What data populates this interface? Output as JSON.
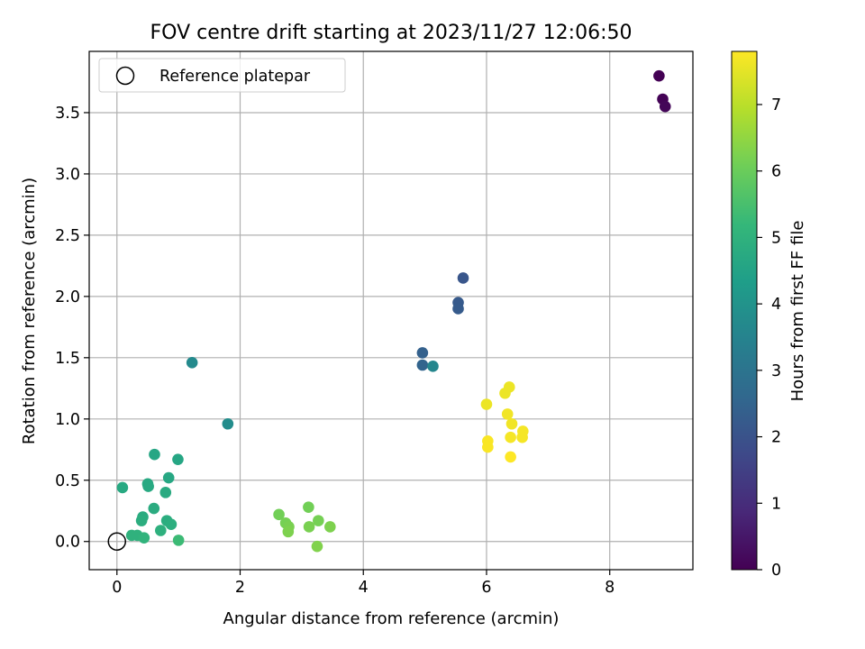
{
  "chart_data": {
    "type": "scatter",
    "title": "FOV centre drift starting at 2023/11/27 12:06:50",
    "xlabel": "Angular distance from reference (arcmin)",
    "ylabel": "Rotation from reference (arcmin)",
    "xlim": [
      -0.45,
      9.35
    ],
    "ylim": [
      -0.23,
      4.0
    ],
    "xticks": [
      0,
      2,
      4,
      6,
      8
    ],
    "yticks": [
      0.0,
      0.5,
      1.0,
      1.5,
      2.0,
      2.5,
      3.0,
      3.5
    ],
    "xtick_labels": [
      "0",
      "2",
      "4",
      "6",
      "8"
    ],
    "ytick_labels": [
      "0.0",
      "0.5",
      "1.0",
      "1.5",
      "2.0",
      "2.5",
      "3.0",
      "3.5"
    ],
    "grid": true,
    "legend": {
      "position": "top-left",
      "entries": [
        {
          "label": "Reference platepar",
          "marker": "open-circle"
        }
      ]
    },
    "reference_point": {
      "x": 0,
      "y": 0,
      "label": "Reference platepar"
    },
    "colorbar": {
      "label": "Hours from first FF file",
      "range": [
        0,
        7.8
      ],
      "ticks": [
        0,
        1,
        2,
        3,
        4,
        5,
        6,
        7
      ],
      "tick_labels": [
        "0",
        "1",
        "2",
        "3",
        "4",
        "5",
        "6",
        "7"
      ],
      "colormap": "viridis",
      "colors": [
        "#440154",
        "#482878",
        "#3e4989",
        "#31688e",
        "#26828e",
        "#1f9e89",
        "#35b779",
        "#6ece58",
        "#b5de2b",
        "#fde725"
      ]
    },
    "points": [
      {
        "x": 8.8,
        "y": 3.8,
        "hours": 0.0
      },
      {
        "x": 8.86,
        "y": 3.61,
        "hours": 0.05
      },
      {
        "x": 8.9,
        "y": 3.55,
        "hours": 0.1
      },
      {
        "x": 5.62,
        "y": 2.15,
        "hours": 2.1
      },
      {
        "x": 5.54,
        "y": 1.95,
        "hours": 2.2
      },
      {
        "x": 5.54,
        "y": 1.9,
        "hours": 2.25
      },
      {
        "x": 4.96,
        "y": 1.54,
        "hours": 2.4
      },
      {
        "x": 4.96,
        "y": 1.44,
        "hours": 2.5
      },
      {
        "x": 5.13,
        "y": 1.43,
        "hours": 3.6
      },
      {
        "x": 1.22,
        "y": 1.46,
        "hours": 3.7
      },
      {
        "x": 1.8,
        "y": 0.96,
        "hours": 3.8
      },
      {
        "x": 0.61,
        "y": 0.71,
        "hours": 4.6
      },
      {
        "x": 0.99,
        "y": 0.67,
        "hours": 4.6
      },
      {
        "x": 0.84,
        "y": 0.52,
        "hours": 4.65
      },
      {
        "x": 0.5,
        "y": 0.47,
        "hours": 4.7
      },
      {
        "x": 0.51,
        "y": 0.45,
        "hours": 4.7
      },
      {
        "x": 0.09,
        "y": 0.44,
        "hours": 4.7
      },
      {
        "x": 0.79,
        "y": 0.4,
        "hours": 4.75
      },
      {
        "x": 0.6,
        "y": 0.27,
        "hours": 4.8
      },
      {
        "x": 0.42,
        "y": 0.2,
        "hours": 4.8
      },
      {
        "x": 0.4,
        "y": 0.17,
        "hours": 4.85
      },
      {
        "x": 0.81,
        "y": 0.17,
        "hours": 4.85
      },
      {
        "x": 0.88,
        "y": 0.14,
        "hours": 4.9
      },
      {
        "x": 0.71,
        "y": 0.09,
        "hours": 4.95
      },
      {
        "x": 0.24,
        "y": 0.05,
        "hours": 5.0
      },
      {
        "x": 0.33,
        "y": 0.05,
        "hours": 5.0
      },
      {
        "x": 0.44,
        "y": 0.03,
        "hours": 5.05
      },
      {
        "x": 1.0,
        "y": 0.01,
        "hours": 5.3
      },
      {
        "x": 3.11,
        "y": 0.28,
        "hours": 6.1
      },
      {
        "x": 2.63,
        "y": 0.22,
        "hours": 6.1
      },
      {
        "x": 3.27,
        "y": 0.17,
        "hours": 6.15
      },
      {
        "x": 2.74,
        "y": 0.15,
        "hours": 6.15
      },
      {
        "x": 2.79,
        "y": 0.12,
        "hours": 6.2
      },
      {
        "x": 3.12,
        "y": 0.12,
        "hours": 6.2
      },
      {
        "x": 3.46,
        "y": 0.12,
        "hours": 6.25
      },
      {
        "x": 2.78,
        "y": 0.08,
        "hours": 6.25
      },
      {
        "x": 3.25,
        "y": -0.04,
        "hours": 6.3
      },
      {
        "x": 6.37,
        "y": 1.26,
        "hours": 7.6
      },
      {
        "x": 6.3,
        "y": 1.21,
        "hours": 7.6
      },
      {
        "x": 6.0,
        "y": 1.12,
        "hours": 7.6
      },
      {
        "x": 6.34,
        "y": 1.04,
        "hours": 7.65
      },
      {
        "x": 6.41,
        "y": 0.96,
        "hours": 7.65
      },
      {
        "x": 6.59,
        "y": 0.9,
        "hours": 7.7
      },
      {
        "x": 6.39,
        "y": 0.85,
        "hours": 7.7
      },
      {
        "x": 6.58,
        "y": 0.85,
        "hours": 7.7
      },
      {
        "x": 6.02,
        "y": 0.82,
        "hours": 7.75
      },
      {
        "x": 6.02,
        "y": 0.77,
        "hours": 7.75
      },
      {
        "x": 6.39,
        "y": 0.69,
        "hours": 7.8
      }
    ]
  }
}
